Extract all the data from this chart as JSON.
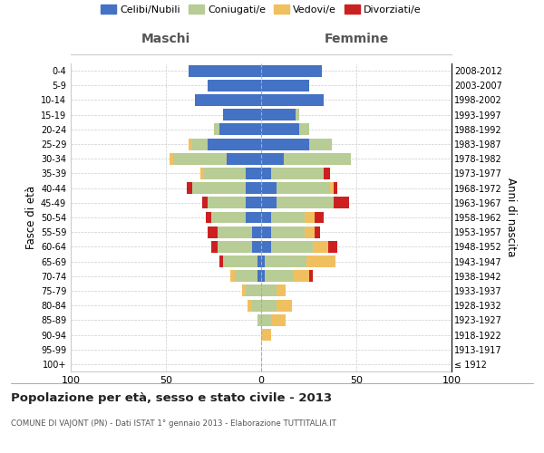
{
  "age_groups": [
    "100+",
    "95-99",
    "90-94",
    "85-89",
    "80-84",
    "75-79",
    "70-74",
    "65-69",
    "60-64",
    "55-59",
    "50-54",
    "45-49",
    "40-44",
    "35-39",
    "30-34",
    "25-29",
    "20-24",
    "15-19",
    "10-14",
    "5-9",
    "0-4"
  ],
  "birth_years": [
    "≤ 1912",
    "1913-1917",
    "1918-1922",
    "1923-1927",
    "1928-1932",
    "1933-1937",
    "1938-1942",
    "1943-1947",
    "1948-1952",
    "1953-1957",
    "1958-1962",
    "1963-1967",
    "1968-1972",
    "1973-1977",
    "1978-1982",
    "1983-1987",
    "1988-1992",
    "1993-1997",
    "1998-2002",
    "2003-2007",
    "2008-2012"
  ],
  "maschi": {
    "celibi": [
      0,
      0,
      0,
      0,
      0,
      0,
      2,
      2,
      5,
      5,
      8,
      8,
      8,
      8,
      18,
      28,
      22,
      20,
      35,
      28,
      38
    ],
    "coniugati": [
      0,
      0,
      0,
      2,
      5,
      8,
      12,
      18,
      18,
      18,
      18,
      20,
      28,
      22,
      28,
      8,
      3,
      0,
      0,
      0,
      0
    ],
    "vedovi": [
      0,
      0,
      0,
      0,
      2,
      2,
      2,
      0,
      0,
      0,
      0,
      0,
      0,
      2,
      2,
      2,
      0,
      0,
      0,
      0,
      0
    ],
    "divorziati": [
      0,
      0,
      0,
      0,
      0,
      0,
      0,
      2,
      3,
      5,
      3,
      3,
      3,
      0,
      0,
      0,
      0,
      0,
      0,
      0,
      0
    ]
  },
  "femmine": {
    "nubili": [
      0,
      0,
      0,
      0,
      0,
      0,
      2,
      2,
      5,
      5,
      5,
      8,
      8,
      5,
      12,
      25,
      20,
      18,
      33,
      25,
      32
    ],
    "coniugate": [
      0,
      0,
      0,
      5,
      8,
      8,
      15,
      22,
      22,
      18,
      18,
      30,
      28,
      28,
      35,
      12,
      5,
      2,
      0,
      0,
      0
    ],
    "vedove": [
      0,
      0,
      5,
      8,
      8,
      5,
      8,
      15,
      8,
      5,
      5,
      0,
      2,
      0,
      0,
      0,
      0,
      0,
      0,
      0,
      0
    ],
    "divorziate": [
      0,
      0,
      0,
      0,
      0,
      0,
      2,
      0,
      5,
      3,
      5,
      8,
      2,
      3,
      0,
      0,
      0,
      0,
      0,
      0,
      0
    ]
  },
  "colors": {
    "celibi_nubili": "#4472c4",
    "coniugati": "#b8cc96",
    "vedovi": "#f0c060",
    "divorziati": "#cc2020"
  },
  "xlim": [
    -100,
    100
  ],
  "xticks": [
    -100,
    -50,
    0,
    50,
    100
  ],
  "xticklabels": [
    "100",
    "50",
    "0",
    "50",
    "100"
  ],
  "title": "Popolazione per età, sesso e stato civile - 2013",
  "subtitle": "COMUNE DI VAJONT (PN) - Dati ISTAT 1° gennaio 2013 - Elaborazione TUTTITALIA.IT",
  "ylabel_left": "Fasce di età",
  "ylabel_right": "Anni di nascita",
  "header_maschi": "Maschi",
  "header_femmine": "Femmine",
  "legend_labels": [
    "Celibi/Nubili",
    "Coniugati/e",
    "Vedovi/e",
    "Divorziati/e"
  ],
  "background_color": "#ffffff",
  "grid_color": "#cccccc"
}
